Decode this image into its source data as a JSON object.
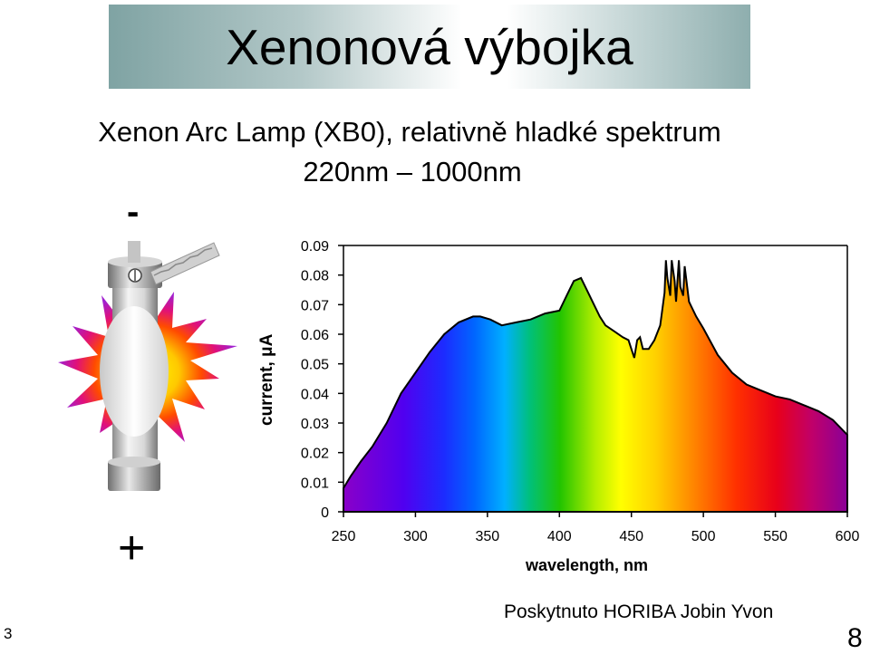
{
  "slide": {
    "title": "Xenonová výbojka",
    "subtitle_line1": "Xenon Arc Lamp (XB0), relativně hladké spektrum",
    "subtitle_line2": "220nm – 1000nm",
    "minus_label": "-",
    "plus_label": "+",
    "credit": "Poskytnuto HORIBA Jobin Yvon",
    "page_left": "3",
    "page_right": "8"
  },
  "chart_data": {
    "type": "area",
    "xlabel": "wavelength, nm",
    "ylabel": "current, μA",
    "xlim": [
      250,
      600
    ],
    "ylim": [
      0,
      0.09
    ],
    "x_ticks": [
      250,
      300,
      350,
      400,
      450,
      500,
      550,
      600
    ],
    "y_ticks": [
      0,
      0.01,
      0.02,
      0.03,
      0.04,
      0.05,
      0.06,
      0.07,
      0.08,
      0.09
    ],
    "y_tick_labels": [
      "0",
      "0.01",
      "0.02",
      "0.03",
      "0.04",
      "0.05",
      "0.06",
      "0.07",
      "0.08",
      "0.09"
    ],
    "grid": false,
    "fill": "visible spectrum color gradient",
    "x": [
      250,
      255,
      262,
      270,
      280,
      290,
      300,
      310,
      320,
      330,
      340,
      345,
      352,
      360,
      370,
      380,
      390,
      400,
      405,
      410,
      415,
      420,
      425,
      428,
      432,
      438,
      444,
      448,
      450,
      452,
      454,
      456,
      458,
      462,
      466,
      470,
      473,
      474,
      475,
      477,
      478,
      480,
      481,
      483,
      484,
      486,
      487,
      490,
      495,
      500,
      510,
      520,
      530,
      540,
      550,
      560,
      570,
      580,
      590,
      600
    ],
    "y": [
      0.008,
      0.012,
      0.017,
      0.022,
      0.03,
      0.04,
      0.047,
      0.054,
      0.06,
      0.064,
      0.066,
      0.066,
      0.065,
      0.063,
      0.064,
      0.065,
      0.067,
      0.068,
      0.073,
      0.078,
      0.079,
      0.074,
      0.069,
      0.066,
      0.063,
      0.061,
      0.059,
      0.058,
      0.055,
      0.052,
      0.058,
      0.059,
      0.055,
      0.055,
      0.058,
      0.063,
      0.074,
      0.085,
      0.079,
      0.073,
      0.085,
      0.078,
      0.071,
      0.085,
      0.076,
      0.073,
      0.083,
      0.071,
      0.066,
      0.062,
      0.053,
      0.047,
      0.043,
      0.041,
      0.039,
      0.038,
      0.036,
      0.034,
      0.031,
      0.026
    ]
  }
}
